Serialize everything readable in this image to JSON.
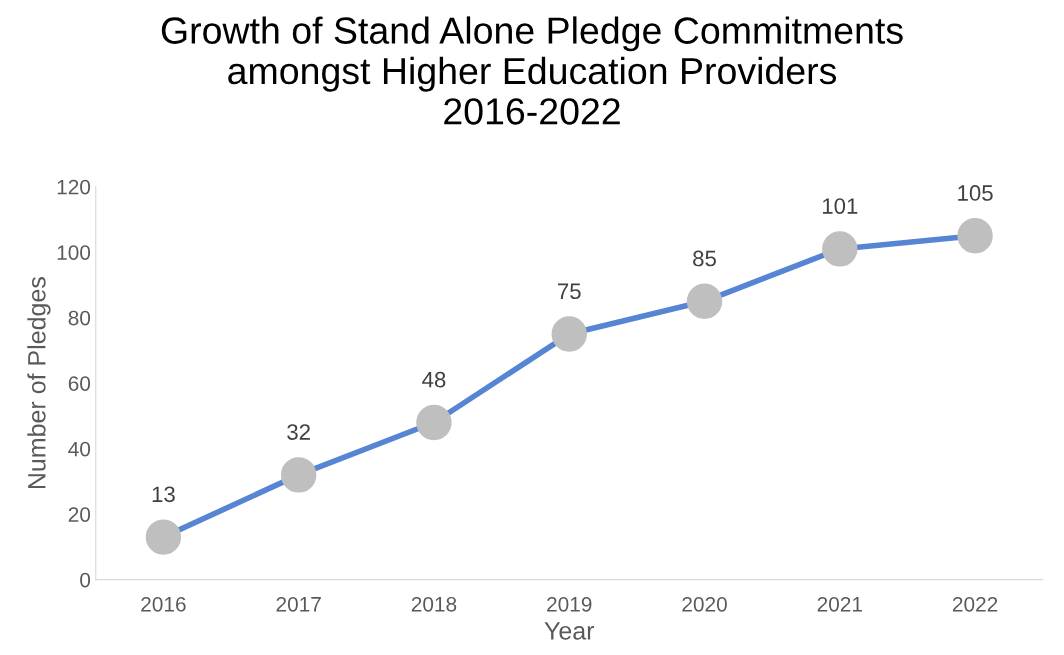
{
  "chart_data": {
    "type": "line",
    "title": "Growth of Stand Alone Pledge Commitments\namongst Higher Education Providers\n2016-2022",
    "xlabel": "Year",
    "ylabel": "Number of Pledges",
    "categories": [
      "2016",
      "2017",
      "2018",
      "2019",
      "2020",
      "2021",
      "2022"
    ],
    "series": [
      {
        "color": "#5585d3",
        "colors": [
          "#bfbfbf",
          "#bfbfbf",
          "#bfbfbf",
          "#bfbfbf",
          "#bfbfbf",
          "#bfbfbf",
          "#bfbfbf"
        ],
        "values": [
          13,
          32,
          48,
          75,
          85,
          101,
          105
        ]
      }
    ],
    "ylim": [
      0,
      120
    ],
    "yticks": [
      0,
      20,
      40,
      60,
      80,
      100,
      120
    ],
    "grid": false,
    "legend": false,
    "marker": "circle",
    "line_style": "solid",
    "data_labels": true
  }
}
